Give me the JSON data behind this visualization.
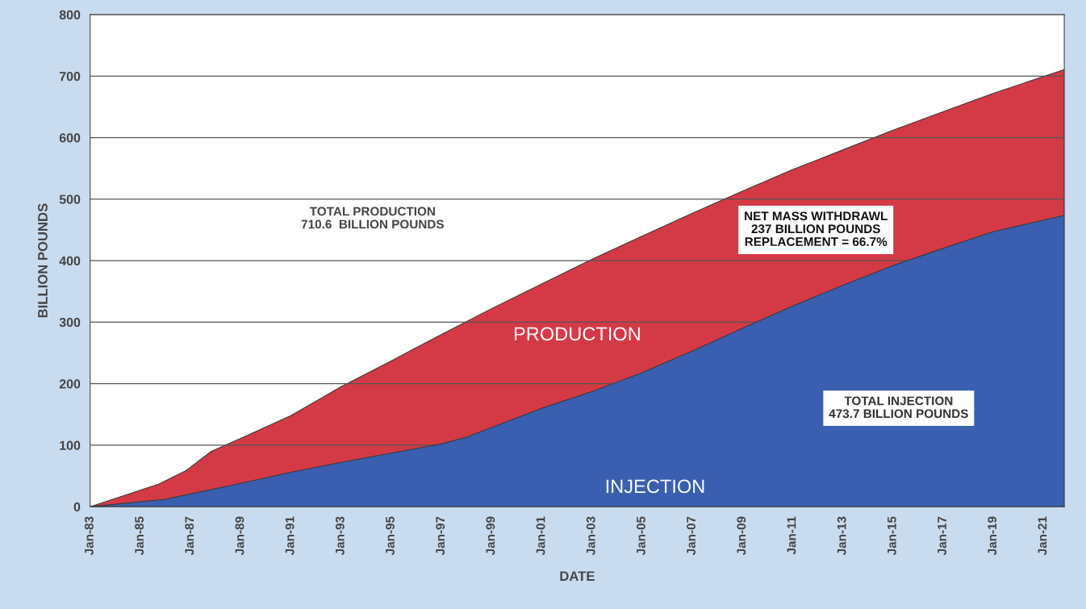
{
  "chart_data": {
    "type": "area",
    "xlabel": "DATE",
    "ylabel": "BILLION POUNDS",
    "series": [
      {
        "name": "PRODUCTION",
        "color": "#d43a46",
        "x": [
          "1983-01",
          "1985-10",
          "1986-11",
          "1987-11",
          "1989-01",
          "1991-01",
          "1993-01",
          "1995-01",
          "1997-01",
          "1999-01",
          "2001-01",
          "2003-01",
          "2005-01",
          "2007-01",
          "2009-01",
          "2011-01",
          "2013-01",
          "2015-01",
          "2017-01",
          "2019-01",
          "2021-11"
        ],
        "values": [
          0,
          37,
          59,
          90,
          111,
          148,
          195,
          237,
          280,
          322,
          362,
          402,
          440,
          477,
          513,
          548,
          580,
          612,
          642,
          672,
          710.6
        ]
      },
      {
        "name": "INJECTION",
        "color": "#3a5fb0",
        "x": [
          "1983-01",
          "1986-01",
          "1989-01",
          "1991-01",
          "1993-01",
          "1995-01",
          "1997-01",
          "1998-01",
          "2001-01",
          "2003-01",
          "2005-01",
          "2007-01",
          "2009-01",
          "2011-01",
          "2013-01",
          "2015-01",
          "2017-01",
          "2019-01",
          "2021-11"
        ],
        "values": [
          0,
          12,
          38,
          56,
          72,
          87,
          102,
          113,
          160,
          187,
          218,
          253,
          290,
          326,
          360,
          392,
          420,
          447,
          473.7
        ]
      }
    ],
    "annotations": [
      "TOTAL PRODUCTION\n710.6  BILLION POUNDS",
      "NET MASS WITHDRAWL\n237 BILLION POUNDS\nREPLACEMENT = 66.7%",
      "TOTAL INJECTION\n473.7 BILLION POUNDS"
    ],
    "xlim": [
      "1983-01",
      "2021-11"
    ],
    "xticks": [
      {
        "value": "1983-01",
        "label": "Jan-83"
      },
      {
        "value": "1985-01",
        "label": "Jan-85"
      },
      {
        "value": "1987-01",
        "label": "Jan-87"
      },
      {
        "value": "1989-01",
        "label": "Jan-89"
      },
      {
        "value": "1991-01",
        "label": "Jan-91"
      },
      {
        "value": "1993-01",
        "label": "Jan-93"
      },
      {
        "value": "1995-01",
        "label": "Jan-95"
      },
      {
        "value": "1997-01",
        "label": "Jan-97"
      },
      {
        "value": "1999-01",
        "label": "Jan-99"
      },
      {
        "value": "2001-01",
        "label": "Jan-01"
      },
      {
        "value": "2003-01",
        "label": "Jan-03"
      },
      {
        "value": "2005-01",
        "label": "Jan-05"
      },
      {
        "value": "2007-01",
        "label": "Jan-07"
      },
      {
        "value": "2009-01",
        "label": "Jan-09"
      },
      {
        "value": "2011-01",
        "label": "Jan-11"
      },
      {
        "value": "2013-01",
        "label": "Jan-13"
      },
      {
        "value": "2015-01",
        "label": "Jan-15"
      },
      {
        "value": "2017-01",
        "label": "Jan-17"
      },
      {
        "value": "2019-01",
        "label": "Jan-19"
      },
      {
        "value": "2021-01",
        "label": "Jan-21"
      }
    ],
    "ylim": [
      0,
      800
    ],
    "yticks": [
      0,
      100,
      200,
      300,
      400,
      500,
      600,
      700,
      800
    ],
    "grid": "y"
  }
}
